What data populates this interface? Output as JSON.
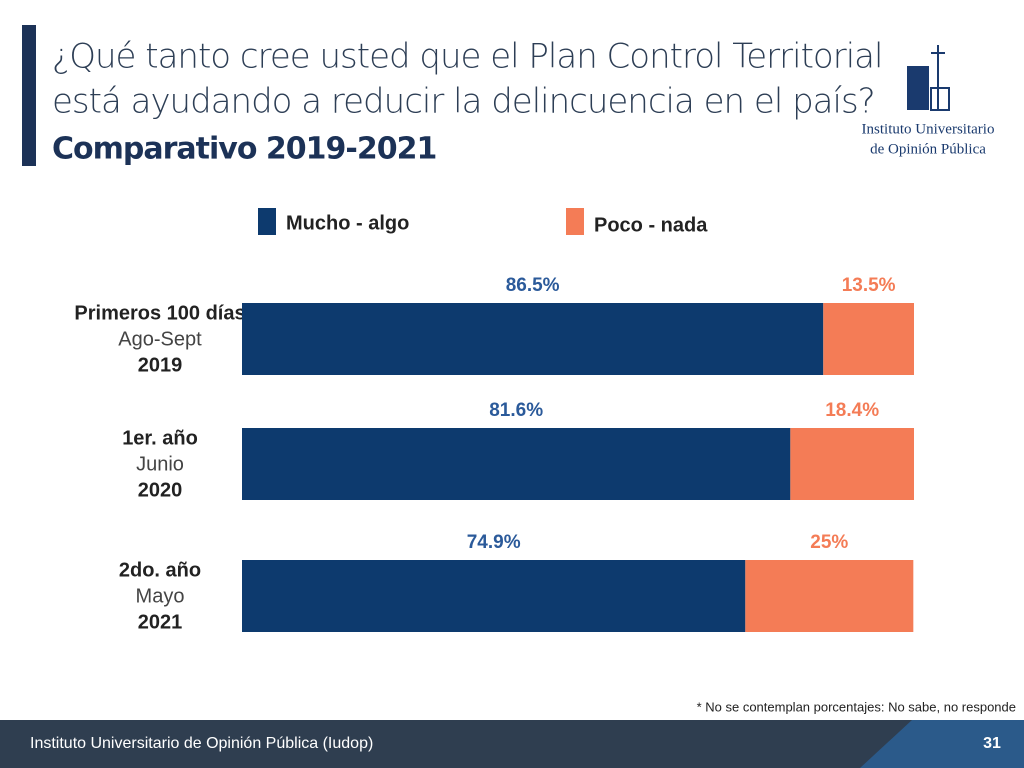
{
  "header": {
    "title_lines": [
      "¿Qué tanto cree usted que el Plan Control Territorial",
      "está ayudando a reducir la delincuencia en el país?"
    ],
    "subtitle": "Comparativo 2019-2021",
    "logo_lines": [
      "Instituto Universitario",
      "de Opinión Pública"
    ]
  },
  "chart_data": {
    "type": "stacked-bar-horizontal",
    "categories": [
      [
        "Primeros 100 días",
        "Ago-Sept",
        "2019"
      ],
      [
        "1er. año",
        "Junio",
        "2020"
      ],
      [
        "2do. año",
        "Mayo",
        "2021"
      ]
    ],
    "xlim": [
      0,
      100
    ],
    "series": [
      {
        "name": "Mucho - algo",
        "color": "#0d3a6e",
        "values": [
          86.5,
          81.6,
          74.9
        ],
        "value_labels": [
          "86.5%",
          "81.6%",
          "74.9%"
        ]
      },
      {
        "name": "Poco - nada",
        "color": "#f47c56",
        "values": [
          13.5,
          18.4,
          25
        ],
        "value_labels": [
          "13.5%",
          "18.4%",
          "25%"
        ]
      }
    ]
  },
  "footnote": "* No se contemplan porcentajes: No sabe, no responde",
  "footer": {
    "text": "Instituto Universitario de Opinión Pública (Iudop)",
    "page": "31"
  }
}
